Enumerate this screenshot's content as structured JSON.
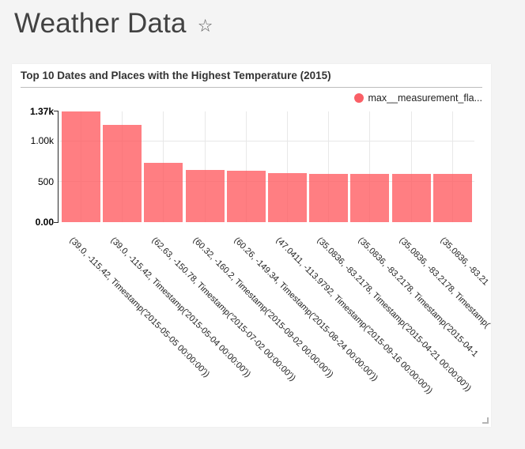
{
  "page": {
    "title": "Weather Data",
    "favorite_icon": "☆"
  },
  "card": {
    "title": "Top 10 Dates and Places with the Highest Temperature (2015)"
  },
  "legend": {
    "label": "max__measurement_fla...",
    "color": "#fa5f66"
  },
  "chart_data": {
    "type": "bar",
    "title": "Top 10 Dates and Places with the Highest Temperature (2015)",
    "series": [
      {
        "name": "max__measurement_fla...",
        "values": [
          1370,
          1200,
          730,
          645,
          635,
          600,
          590,
          590,
          590,
          590
        ]
      }
    ],
    "categories": [
      "(39.0, -115.42, Timestamp('2015-05-05 00:00:00'))",
      "(39.0, -115.42, Timestamp('2015-05-04 00:00:00'))",
      "(62.63, -150.78, Timestamp('2015-07-02 00:00:00'))",
      "(60.32, -160.2, Timestamp('2015-09-02 00:00:00'))",
      "(60.26, -149.34, Timestamp('2015-08-24 00:00:00'))",
      "(47.0411, -113.9792, Timestamp('2015-09-16 00:00:00'))",
      "(35.0836, -83.2178, Timestamp('2015-04-21 00:00:00'))",
      "(35.0836, -83.2178, Timestamp('2015-04-1",
      "(35.0836, -83.2178, Timestamp(",
      "(35.0836, -83.21"
    ],
    "y_ticks": [
      {
        "label": "0.00",
        "value": 0,
        "bold": true
      },
      {
        "label": "500",
        "value": 500,
        "bold": false
      },
      {
        "label": "1.00k",
        "value": 1000,
        "bold": false
      },
      {
        "label": "1.37k",
        "value": 1370,
        "bold": true
      }
    ],
    "ylim": [
      0,
      1370
    ],
    "bar_color": "#ff5a5f",
    "bar_opacity": 0.78,
    "grid": true,
    "legend_position": "top-right",
    "x_label_rotation_deg": 45
  }
}
